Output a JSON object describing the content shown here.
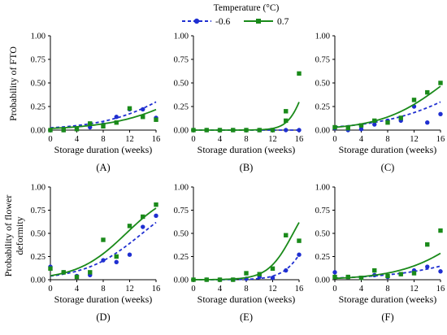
{
  "legend": {
    "title": "Temperature (°C)",
    "series": [
      {
        "name": "-0.6",
        "color": "#1f2fd1",
        "marker": "circle",
        "line": "dashed"
      },
      {
        "name": "0.7",
        "color": "#1a8a1a",
        "marker": "square",
        "line": "solid"
      }
    ]
  },
  "ylabels": {
    "top": "Probability of FTO",
    "bottom_line1": "Probability of flower",
    "bottom_line2": "deformity"
  },
  "chart_data": [
    {
      "type": "scatter",
      "panel": "(A)",
      "xlabel": "Storage duration (weeks)",
      "xlim": [
        0,
        16
      ],
      "ylim": [
        0,
        1
      ],
      "xticks": [
        0,
        4,
        8,
        12,
        16
      ],
      "yticks": [
        0.0,
        0.25,
        0.5,
        0.75,
        1.0
      ],
      "series": [
        {
          "name": "-0.6",
          "points": [
            [
              0,
              0
            ],
            [
              2,
              0
            ],
            [
              4,
              0.01
            ],
            [
              6,
              0.03
            ],
            [
              8,
              0.06
            ],
            [
              10,
              0.14
            ],
            [
              12,
              0.22
            ],
            [
              14,
              0.22
            ],
            [
              16,
              0.13
            ]
          ],
          "fit": {
            "a": -3.7,
            "b": 0.178
          }
        },
        {
          "name": "0.7",
          "points": [
            [
              0,
              0
            ],
            [
              2,
              0
            ],
            [
              4,
              0.01
            ],
            [
              6,
              0.07
            ],
            [
              8,
              0.04
            ],
            [
              10,
              0.08
            ],
            [
              12,
              0.23
            ],
            [
              14,
              0.14
            ],
            [
              16,
              0.11
            ]
          ],
          "fit": {
            "a": -4.0,
            "b": 0.17
          }
        }
      ]
    },
    {
      "type": "scatter",
      "panel": "(B)",
      "xlabel": "Storage duration (weeks)",
      "xlim": [
        0,
        16
      ],
      "ylim": [
        0,
        1
      ],
      "xticks": [
        0,
        4,
        8,
        12,
        16
      ],
      "yticks": [
        0.0,
        0.25,
        0.5,
        0.75,
        1.0
      ],
      "series": [
        {
          "name": "-0.6",
          "points": [
            [
              0,
              0
            ],
            [
              2,
              0
            ],
            [
              4,
              0
            ],
            [
              6,
              0
            ],
            [
              8,
              0
            ],
            [
              10,
              0
            ],
            [
              12,
              0
            ],
            [
              14,
              0
            ],
            [
              16,
              0
            ]
          ],
          "fit": {
            "a": -12,
            "b": 0
          }
        },
        {
          "name": "0.7",
          "points": [
            [
              0,
              0
            ],
            [
              2,
              0
            ],
            [
              4,
              0
            ],
            [
              6,
              0
            ],
            [
              8,
              0
            ],
            [
              10,
              0
            ],
            [
              12,
              0
            ],
            [
              14,
              0.1
            ],
            [
              14,
              0.2
            ],
            [
              16,
              0.6
            ]
          ],
          "fit": {
            "a": -13.5,
            "b": 0.79
          }
        }
      ]
    },
    {
      "type": "scatter",
      "panel": "(C)",
      "xlabel": "Storage duration (weeks)",
      "xlim": [
        0,
        16
      ],
      "ylim": [
        0,
        1
      ],
      "xticks": [
        0,
        4,
        8,
        12,
        16
      ],
      "yticks": [
        0.0,
        0.25,
        0.5,
        0.75,
        1.0
      ],
      "series": [
        {
          "name": "-0.6",
          "points": [
            [
              0,
              0.02
            ],
            [
              2,
              0
            ],
            [
              4,
              0.01
            ],
            [
              6,
              0.06
            ],
            [
              8,
              0.1
            ],
            [
              10,
              0.1
            ],
            [
              12,
              0.25
            ],
            [
              14,
              0.08
            ],
            [
              16,
              0.17
            ]
          ],
          "fit": {
            "a": -3.35,
            "b": 0.156
          }
        },
        {
          "name": "0.7",
          "points": [
            [
              0,
              0.03
            ],
            [
              2,
              0.02
            ],
            [
              4,
              0.05
            ],
            [
              6,
              0.1
            ],
            [
              8,
              0.08
            ],
            [
              10,
              0.13
            ],
            [
              12,
              0.32
            ],
            [
              14,
              0.4
            ],
            [
              16,
              0.5
            ]
          ],
          "fit": {
            "a": -3.5,
            "b": 0.21
          }
        }
      ]
    },
    {
      "type": "scatter",
      "panel": "(D)",
      "xlabel": "Storage duration (weeks)",
      "xlim": [
        0,
        16
      ],
      "ylim": [
        0,
        1
      ],
      "xticks": [
        0,
        4,
        8,
        12,
        16
      ],
      "yticks": [
        0.0,
        0.25,
        0.5,
        0.75,
        1.0
      ],
      "series": [
        {
          "name": "-0.6",
          "points": [
            [
              0,
              0.14
            ],
            [
              2,
              0.08
            ],
            [
              4,
              0.04
            ],
            [
              6,
              0.05
            ],
            [
              8,
              0.21
            ],
            [
              10,
              0.19
            ],
            [
              12,
              0.27
            ],
            [
              14,
              0.57
            ],
            [
              16,
              0.69
            ]
          ],
          "fit": {
            "a": -3.2,
            "b": 0.23
          }
        },
        {
          "name": "0.7",
          "points": [
            [
              0,
              0.12
            ],
            [
              2,
              0.08
            ],
            [
              4,
              0.03
            ],
            [
              6,
              0.08
            ],
            [
              8,
              0.43
            ],
            [
              10,
              0.25
            ],
            [
              12,
              0.58
            ],
            [
              14,
              0.68
            ],
            [
              16,
              0.81
            ]
          ],
          "fit": {
            "a": -3.1,
            "b": 0.27
          }
        }
      ]
    },
    {
      "type": "scatter",
      "panel": "(E)",
      "xlabel": "Storage duration (weeks)",
      "xlim": [
        0,
        16
      ],
      "ylim": [
        0,
        1
      ],
      "xticks": [
        0,
        4,
        8,
        12,
        16
      ],
      "yticks": [
        0.0,
        0.25,
        0.5,
        0.75,
        1.0
      ],
      "series": [
        {
          "name": "-0.6",
          "points": [
            [
              0,
              0
            ],
            [
              2,
              0
            ],
            [
              4,
              0
            ],
            [
              6,
              0
            ],
            [
              8,
              0.01
            ],
            [
              10,
              0.03
            ],
            [
              12,
              0.02
            ],
            [
              14,
              0.1
            ],
            [
              16,
              0.27
            ]
          ],
          "fit": {
            "a": -9.8,
            "b": 0.55
          }
        },
        {
          "name": "0.7",
          "points": [
            [
              0,
              0
            ],
            [
              2,
              0
            ],
            [
              4,
              0
            ],
            [
              6,
              0
            ],
            [
              8,
              0.07
            ],
            [
              10,
              0.06
            ],
            [
              12,
              0.12
            ],
            [
              14,
              0.48
            ],
            [
              16,
              0.42
            ]
          ],
          "fit": {
            "a": -8.0,
            "b": 0.53
          }
        }
      ]
    },
    {
      "type": "scatter",
      "panel": "(F)",
      "xlabel": "Storage duration (weeks)",
      "xlim": [
        0,
        16
      ],
      "ylim": [
        0,
        1
      ],
      "xticks": [
        0,
        4,
        8,
        12,
        16
      ],
      "yticks": [
        0.0,
        0.25,
        0.5,
        0.75,
        1.0
      ],
      "series": [
        {
          "name": "-0.6",
          "points": [
            [
              0,
              0.08
            ],
            [
              2,
              0.03
            ],
            [
              4,
              0.02
            ],
            [
              6,
              0.05
            ],
            [
              8,
              0.03
            ],
            [
              10,
              0.06
            ],
            [
              12,
              0.1
            ],
            [
              14,
              0.14
            ],
            [
              16,
              0.09
            ]
          ],
          "fit": {
            "a": -4.0,
            "b": 0.14
          }
        },
        {
          "name": "0.7",
          "points": [
            [
              0,
              0.03
            ],
            [
              2,
              0.03
            ],
            [
              4,
              0.02
            ],
            [
              6,
              0.1
            ],
            [
              8,
              0.04
            ],
            [
              10,
              0.06
            ],
            [
              12,
              0.07
            ],
            [
              14,
              0.38
            ],
            [
              16,
              0.53
            ]
          ],
          "fit": {
            "a": -4.2,
            "b": 0.205
          }
        }
      ]
    }
  ]
}
